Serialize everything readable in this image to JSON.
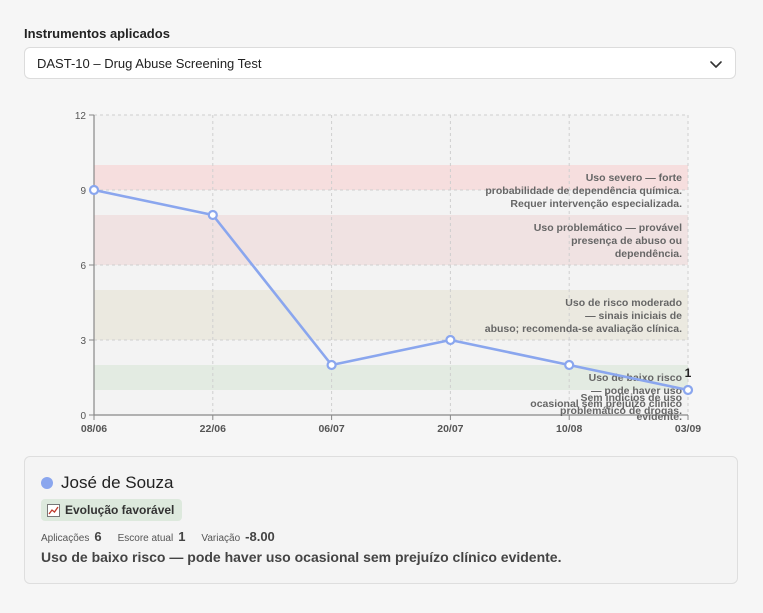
{
  "header": {
    "label": "Instrumentos aplicados",
    "selected_instrument": "DAST-10 – Drug Abuse Screening Test"
  },
  "colors": {
    "line": "#8aa6ee",
    "band_severe": "#f6dede",
    "band_problem": "#f0e2e2",
    "band_moderate": "#ebe9e0",
    "band_low": "#e3ebe2",
    "badge_bg": "#dde9dd"
  },
  "chart_data": {
    "type": "line",
    "x": [
      "08/06",
      "22/06",
      "06/07",
      "20/07",
      "10/08",
      "03/09"
    ],
    "series": [
      {
        "values": [
          9,
          8,
          2,
          3,
          2,
          1
        ]
      }
    ],
    "ylim": [
      0,
      12
    ],
    "yticks": [
      0,
      3,
      6,
      9,
      12
    ],
    "grid": true,
    "last_point_label": "1",
    "bands": [
      {
        "from": 9,
        "to": 10,
        "color": "#f6dede",
        "label": [
          "Uso severo — forte",
          "probabilidade de dependência química.",
          "Requer intervenção especializada."
        ]
      },
      {
        "from": 6,
        "to": 8,
        "color": "#f0e2e2",
        "label": [
          "Uso problemático — provável",
          "presença de abuso ou",
          "dependência."
        ]
      },
      {
        "from": 3,
        "to": 5,
        "color": "#ebe9e0",
        "label": [
          "Uso de risco moderado",
          "— sinais iniciais de",
          "abuso; recomenda-se avaliação clínica."
        ]
      },
      {
        "from": 1,
        "to": 2,
        "color": "#e3ebe2",
        "label": [
          "Uso de baixo risco",
          "— pode haver uso",
          "ocasional sem prejuízo clínico",
          "evidente."
        ]
      },
      {
        "from": 0,
        "to": 0,
        "color": "#e3ebe2",
        "label": [
          "Sem indícios de uso",
          "problemático de drogas."
        ]
      }
    ]
  },
  "patient": {
    "name": "José de Souza",
    "badge": "Evolução favorável",
    "badge_icon": "trend-chart-icon",
    "stats": {
      "applications_label": "Aplicações",
      "applications_value": "6",
      "current_score_label": "Escore atual",
      "current_score_value": "1",
      "variation_label": "Variação",
      "variation_value": "-8.00"
    },
    "description": "Uso de baixo risco — pode haver uso ocasional sem prejuízo clínico evidente."
  }
}
